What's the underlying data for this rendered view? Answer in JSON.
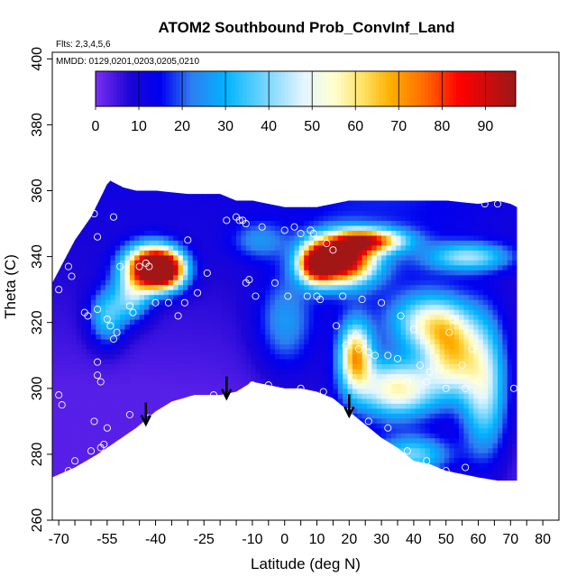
{
  "chart_data": {
    "type": "heatmap",
    "title": "ATOM2 Southbound Prob_ConvInf_Land",
    "flights_note": "Flts: 2,3,4,5,6",
    "dates_note": "MMDD: 0129,0201,0203,0205,0210",
    "xlabel": "Latitude (deg N)",
    "ylabel": "Theta (C)",
    "xlim": [
      -72,
      85
    ],
    "ylim": [
      260,
      402
    ],
    "x_ticks": [
      -70,
      -55,
      -40,
      -25,
      -10,
      0,
      10,
      20,
      30,
      40,
      50,
      60,
      70,
      80
    ],
    "x_minor_step": 5,
    "y_ticks": [
      260,
      280,
      300,
      320,
      340,
      360,
      380,
      400
    ],
    "colorbar": {
      "min": 0,
      "max": 97,
      "ticks": [
        0,
        10,
        20,
        30,
        40,
        50,
        60,
        70,
        80,
        90
      ],
      "stops": [
        {
          "v": 0,
          "color": "#7b2ff2"
        },
        {
          "v": 8,
          "color": "#1c05d6"
        },
        {
          "v": 15,
          "color": "#0000f0"
        },
        {
          "v": 22,
          "color": "#2e7df0"
        },
        {
          "v": 30,
          "color": "#00b4ff"
        },
        {
          "v": 40,
          "color": "#7fd8ff"
        },
        {
          "v": 48,
          "color": "#e4f6ff"
        },
        {
          "v": 55,
          "color": "#ffffd0"
        },
        {
          "v": 62,
          "color": "#ffe060"
        },
        {
          "v": 68,
          "color": "#ffb000"
        },
        {
          "v": 76,
          "color": "#ff6a00"
        },
        {
          "v": 84,
          "color": "#ff0000"
        },
        {
          "v": 97,
          "color": "#9a1818"
        }
      ]
    },
    "domain_top_theta": [
      [
        -72,
        332
      ],
      [
        -65,
        345
      ],
      [
        -60,
        352
      ],
      [
        -57,
        358
      ],
      [
        -55,
        362
      ],
      [
        -54,
        363
      ],
      [
        -50,
        361
      ],
      [
        -46,
        360
      ],
      [
        -40,
        360
      ],
      [
        -30,
        359
      ],
      [
        -20,
        359
      ],
      [
        -15,
        357
      ],
      [
        -10,
        357
      ],
      [
        -5,
        356
      ],
      [
        0,
        355
      ],
      [
        10,
        355
      ],
      [
        20,
        357
      ],
      [
        30,
        357
      ],
      [
        40,
        357
      ],
      [
        50,
        357
      ],
      [
        60,
        356
      ],
      [
        66,
        357
      ],
      [
        70,
        356
      ],
      [
        72,
        355
      ]
    ],
    "domain_bottom_theta": [
      [
        -72,
        273
      ],
      [
        -65,
        276
      ],
      [
        -58,
        280
      ],
      [
        -52,
        284
      ],
      [
        -46,
        288
      ],
      [
        -40,
        293
      ],
      [
        -35,
        296
      ],
      [
        -28,
        298
      ],
      [
        -20,
        298
      ],
      [
        -15,
        299
      ],
      [
        -10,
        302
      ],
      [
        -5,
        301
      ],
      [
        0,
        300
      ],
      [
        5,
        300
      ],
      [
        10,
        299
      ],
      [
        15,
        297
      ],
      [
        20,
        293
      ],
      [
        25,
        289
      ],
      [
        30,
        285
      ],
      [
        35,
        282
      ],
      [
        40,
        278
      ],
      [
        45,
        277
      ],
      [
        50,
        275
      ],
      [
        55,
        274
      ],
      [
        60,
        273
      ],
      [
        66,
        272
      ],
      [
        70,
        272
      ],
      [
        72,
        272
      ]
    ],
    "probability_peaks": [
      {
        "lat": -42,
        "theta": 337,
        "value": 82,
        "sx": 5.5,
        "sy": 4.5
      },
      {
        "lat": -37,
        "theta": 336,
        "value": 74,
        "sx": 4.5,
        "sy": 4
      },
      {
        "lat": 18,
        "theta": 339,
        "value": 88,
        "sx": 7,
        "sy": 5
      },
      {
        "lat": 10,
        "theta": 338,
        "value": 70,
        "sx": 4,
        "sy": 4
      },
      {
        "lat": 26,
        "theta": 345,
        "value": 62,
        "sx": 8,
        "sy": 2.5
      },
      {
        "lat": 22,
        "theta": 310,
        "value": 58,
        "sx": 3.5,
        "sy": 7
      },
      {
        "lat": 35,
        "theta": 300,
        "value": 48,
        "sx": 9,
        "sy": 6
      },
      {
        "lat": 52,
        "theta": 310,
        "value": 45,
        "sx": 6,
        "sy": 8
      },
      {
        "lat": 45,
        "theta": 320,
        "value": 40,
        "sx": 8,
        "sy": 6
      },
      {
        "lat": 62,
        "theta": 300,
        "value": 40,
        "sx": 5,
        "sy": 14
      },
      {
        "lat": 57,
        "theta": 340,
        "value": 32,
        "sx": 9,
        "sy": 3
      },
      {
        "lat": -55,
        "theta": 322,
        "value": 28,
        "sx": 4,
        "sy": 6
      },
      {
        "lat": -47,
        "theta": 328,
        "value": 30,
        "sx": 4,
        "sy": 5
      },
      {
        "lat": 0,
        "theta": 320,
        "value": 18,
        "sx": 6,
        "sy": 10
      },
      {
        "lat": 40,
        "theta": 280,
        "value": 30,
        "sx": 8,
        "sy": 4
      },
      {
        "lat": -8,
        "theta": 345,
        "value": 15,
        "sx": 6,
        "sy": 4
      }
    ],
    "observation_points": [
      [
        -70,
        330
      ],
      [
        -67,
        337
      ],
      [
        -66,
        334
      ],
      [
        -62,
        323
      ],
      [
        -61,
        322
      ],
      [
        -58,
        324
      ],
      [
        -59,
        353
      ],
      [
        -53,
        352
      ],
      [
        -58,
        346
      ],
      [
        -55,
        321
      ],
      [
        -54,
        319
      ],
      [
        -52,
        317
      ],
      [
        -53,
        315
      ],
      [
        -51,
        337
      ],
      [
        -48,
        325
      ],
      [
        -47,
        323
      ],
      [
        -45,
        337
      ],
      [
        -43,
        338
      ],
      [
        -42,
        337
      ],
      [
        -40,
        326
      ],
      [
        -36,
        326
      ],
      [
        -33,
        322
      ],
      [
        -31,
        326
      ],
      [
        -30,
        345
      ],
      [
        -27,
        329
      ],
      [
        -24,
        335
      ],
      [
        -18,
        351
      ],
      [
        -15,
        352
      ],
      [
        -14,
        351
      ],
      [
        -13,
        351
      ],
      [
        -12,
        350
      ],
      [
        -12,
        332
      ],
      [
        -11,
        333
      ],
      [
        -9,
        328
      ],
      [
        -7,
        349
      ],
      [
        -3,
        332
      ],
      [
        0,
        348
      ],
      [
        1,
        328
      ],
      [
        3,
        349
      ],
      [
        5,
        347
      ],
      [
        7,
        328
      ],
      [
        8,
        348
      ],
      [
        9,
        347
      ],
      [
        10,
        328
      ],
      [
        11,
        327
      ],
      [
        13,
        344
      ],
      [
        15,
        342
      ],
      [
        16,
        319
      ],
      [
        18,
        328
      ],
      [
        19,
        313
      ],
      [
        22,
        316
      ],
      [
        23,
        312
      ],
      [
        24,
        327
      ],
      [
        26,
        311
      ],
      [
        28,
        310
      ],
      [
        30,
        326
      ],
      [
        32,
        310
      ],
      [
        35,
        309
      ],
      [
        36,
        322
      ],
      [
        38,
        302
      ],
      [
        40,
        318
      ],
      [
        42,
        307
      ],
      [
        44,
        302
      ],
      [
        45,
        305
      ],
      [
        48,
        306
      ],
      [
        50,
        300
      ],
      [
        51,
        317
      ],
      [
        52,
        321
      ],
      [
        55,
        307
      ],
      [
        56,
        300
      ],
      [
        58,
        312
      ],
      [
        60,
        302
      ],
      [
        62,
        356
      ],
      [
        66,
        356
      ],
      [
        71,
        300
      ],
      [
        -58,
        308
      ],
      [
        -58,
        304
      ],
      [
        -57,
        302
      ],
      [
        -59,
        290
      ],
      [
        -56,
        283
      ],
      [
        -57,
        282
      ],
      [
        -55,
        288
      ],
      [
        -48,
        292
      ],
      [
        -42,
        291
      ],
      [
        -35,
        292
      ],
      [
        -28,
        295
      ],
      [
        -22,
        298
      ],
      [
        -10,
        301
      ],
      [
        -5,
        301
      ],
      [
        5,
        300
      ],
      [
        12,
        299
      ],
      [
        20,
        293
      ],
      [
        26,
        290
      ],
      [
        32,
        288
      ],
      [
        38,
        281
      ],
      [
        44,
        278
      ],
      [
        50,
        275
      ],
      [
        56,
        276
      ],
      [
        -70,
        298
      ],
      [
        -69,
        295
      ],
      [
        -67,
        275
      ],
      [
        -65,
        278
      ],
      [
        -60,
        281
      ],
      [
        -50,
        275
      ]
    ],
    "arrows_at_lat": [
      -43,
      -18,
      20
    ]
  }
}
